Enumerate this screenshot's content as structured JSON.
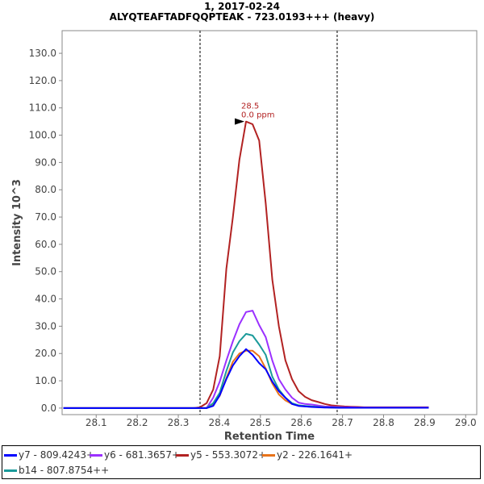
{
  "chart_data": {
    "type": "line",
    "title": "1, 2017-02-24",
    "subtitle": "ALYQTEAFTADFQQPTEAK - 723.0193+++ (heavy)",
    "xlabel": "Retention Time",
    "ylabel": "Intensity 10^3",
    "xlim": [
      28.017,
      29.027
    ],
    "ylim": [
      -2.4,
      138.3
    ],
    "xticks": [
      "28.1",
      "28.2",
      "28.3",
      "28.4",
      "28.5",
      "28.6",
      "28.7",
      "28.8",
      "28.9",
      "29.0"
    ],
    "yticks": [
      "0.0",
      "10.0",
      "20.0",
      "30.0",
      "40.0",
      "50.0",
      "60.0",
      "70.0",
      "80.0",
      "90.0",
      "100.0",
      "110.0",
      "120.0",
      "130.0"
    ],
    "grid": false,
    "legend_position": "bottom",
    "boundaries": [
      28.353,
      28.687
    ],
    "annotation": {
      "rt": "28.5",
      "ppm": "0.0 ppm",
      "x": 28.465,
      "y": 105
    },
    "x_start": 28.02,
    "peak_start": 28.337,
    "step": 0.016,
    "x_end": 28.91,
    "series": [
      {
        "name": "y5 - 553.3072+",
        "color": "#b22222",
        "values": [
          0,
          0.3,
          1.8,
          6.8,
          19,
          51,
          70,
          91,
          105,
          104,
          98,
          75,
          47,
          30,
          17.5,
          10.6,
          6.2,
          4.1,
          2.9,
          2.2,
          1.5,
          1.0,
          0.8,
          0.6,
          0.5,
          0.4,
          0.3
        ]
      },
      {
        "name": "y6 - 681.3657+",
        "color": "#9b30ff",
        "values": [
          0,
          0,
          0,
          3.8,
          9.7,
          17.4,
          24.5,
          30.7,
          35.2,
          35.7,
          30.4,
          26,
          17.4,
          10.6,
          6.8,
          3.8,
          2.0,
          1.5,
          1.3,
          0.9,
          0.6,
          0.5,
          0.4,
          0.3,
          0.3,
          0.2,
          0.2
        ]
      },
      {
        "name": "y2 - 226.1641+",
        "color": "#e8731a",
        "values": [
          0,
          0,
          0,
          1.2,
          4.5,
          11,
          17,
          20,
          21,
          21,
          19,
          14.5,
          9,
          5,
          2.8,
          1.5,
          0.9,
          0.7,
          0.5,
          0.4,
          0.3,
          0.2,
          0.2,
          0.1,
          0.1,
          0.1,
          0.1
        ]
      },
      {
        "name": "b14 - 807.8754++",
        "color": "#1a9a9a",
        "values": [
          0,
          0,
          0,
          1.8,
          5.6,
          13.6,
          20.4,
          24.5,
          27.2,
          26.6,
          23.3,
          19.5,
          11.5,
          6.8,
          3.8,
          1.8,
          1.0,
          0.8,
          0.6,
          0.4,
          0.3,
          0.2,
          0.2,
          0.1,
          0.1,
          0.1,
          0.1
        ]
      },
      {
        "name": "y7 - 809.4243+",
        "color": "#0000ff",
        "values": [
          0,
          0,
          0,
          0.8,
          4.7,
          10.6,
          15.6,
          19,
          21.6,
          19.5,
          16.5,
          14.2,
          9.7,
          6.2,
          3.8,
          1.5,
          0.8,
          0.6,
          0.4,
          0.3,
          0.2,
          0.2,
          0.1,
          0.1,
          0.1,
          0.1,
          0.1
        ]
      }
    ]
  },
  "legend": [
    {
      "label": "y7 - 809.4243+",
      "color": "#0000ff"
    },
    {
      "label": "y6 - 681.3657+",
      "color": "#9b30ff"
    },
    {
      "label": "y5 - 553.3072+",
      "color": "#b22222"
    },
    {
      "label": "y2 - 226.1641+",
      "color": "#e8731a"
    },
    {
      "label": "b14 - 807.8754++",
      "color": "#1a9a9a"
    }
  ]
}
